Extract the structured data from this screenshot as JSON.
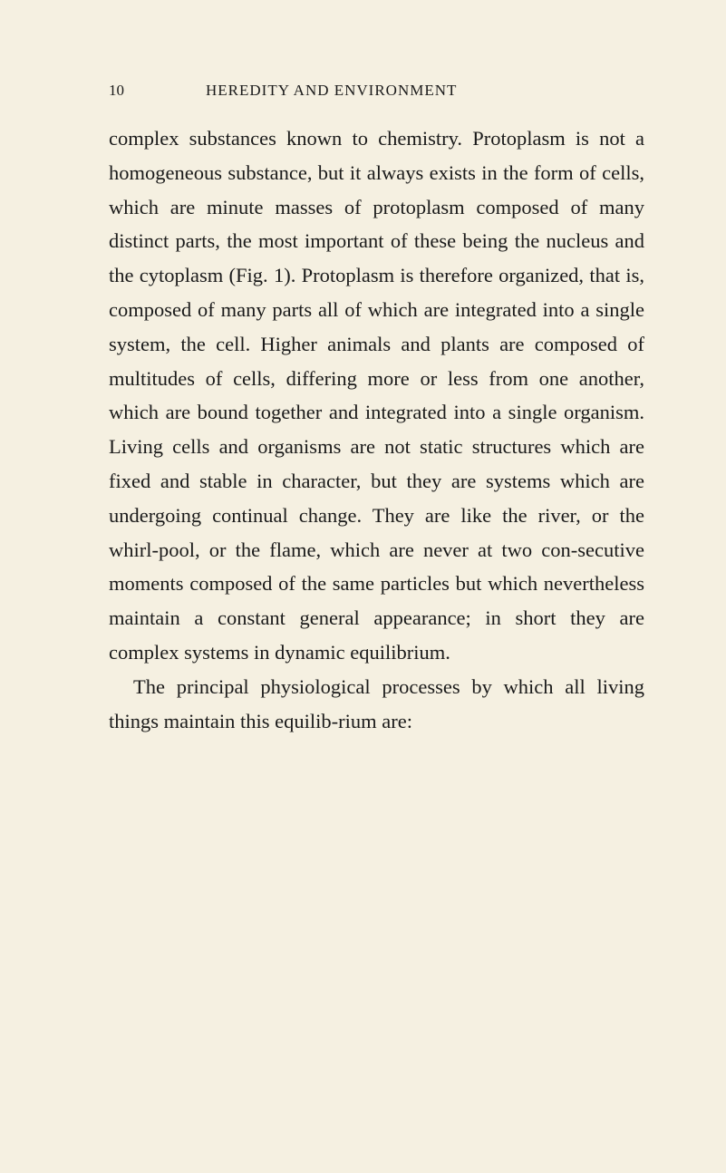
{
  "header": {
    "page_number": "10",
    "title": "HEREDITY AND ENVIRONMENT"
  },
  "content": {
    "paragraph1": "complex substances known to chemistry. Protoplasm is not a homogeneous substance, but it always exists in the form of cells, which are minute masses of protoplasm composed of many distinct parts, the most important of these being the nucleus and the cytoplasm (Fig. 1). Protoplasm is therefore organized, that is, composed of many parts all of which are integrated into a single system, the cell. Higher animals and plants are composed of multitudes of cells, differing more or less from one another, which are bound together and integrated into a single organism. Living cells and organisms are not static structures which are fixed and stable in character, but they are systems which are undergoing continual change. They are like the river, or the whirl-pool, or the flame, which are never at two con-secutive moments composed of the same particles but which nevertheless maintain a constant general appearance; in short they are complex systems in dynamic equilibrium.",
    "paragraph2": "The principal physiological processes by which all living things maintain this equilib-rium are:"
  }
}
